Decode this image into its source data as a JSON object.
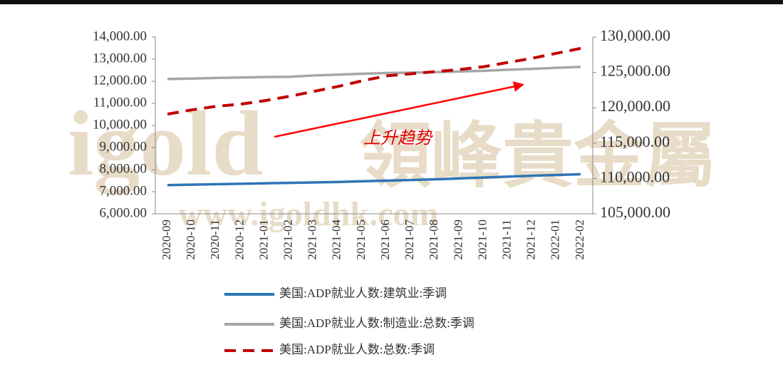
{
  "chart_data": {
    "type": "line",
    "categories": [
      "2020-09",
      "2020-10",
      "2020-11",
      "2020-12",
      "2021-01",
      "2021-02",
      "2021-03",
      "2021-04",
      "2021-05",
      "2021-06",
      "2021-07",
      "2021-08",
      "2021-09",
      "2021-10",
      "2021-11",
      "2021-12",
      "2022-01",
      "2022-02"
    ],
    "series": [
      {
        "name": "美国:ADP就业人数:建筑业:季调",
        "color": "#2e75b6",
        "values": [
          7300,
          7320,
          7340,
          7360,
          7380,
          7400,
          7420,
          7440,
          7470,
          7500,
          7530,
          7560,
          7600,
          7640,
          7680,
          7720,
          7760,
          7790
        ]
      },
      {
        "name": "美国:ADP就业人数:制造业:总数:季调",
        "color": "#a6a6a6",
        "values": [
          12100,
          12120,
          12150,
          12170,
          12190,
          12200,
          12260,
          12300,
          12340,
          12370,
          12390,
          12410,
          12440,
          12470,
          12520,
          12560,
          12610,
          12650
        ]
      },
      {
        "name": "美国:ADP就业人数:总数:季调",
        "color": "#c00000",
        "dash": true,
        "axis": "y2",
        "values": [
          119100,
          119700,
          120200,
          120500,
          121000,
          121600,
          122300,
          123000,
          123800,
          124500,
          124800,
          125100,
          125400,
          125800,
          126400,
          127000,
          127700,
          128400
        ]
      }
    ],
    "ylim": [
      6000,
      14000
    ],
    "yticks": [
      {
        "value": 6000,
        "label": "6,000.00"
      },
      {
        "value": 7000,
        "label": "7,000.00"
      },
      {
        "value": 8000,
        "label": "8,000.00"
      },
      {
        "value": 9000,
        "label": "9,000.00"
      },
      {
        "value": 10000,
        "label": "10,000.00"
      },
      {
        "value": 11000,
        "label": "11,000.00"
      },
      {
        "value": 12000,
        "label": "12,000.00"
      },
      {
        "value": 13000,
        "label": "13,000.00"
      },
      {
        "value": 14000,
        "label": "14,000.00"
      }
    ],
    "y2lim": [
      105000,
      130000
    ],
    "y2ticks": [
      {
        "value": 105000,
        "label": "105,000.00"
      },
      {
        "value": 110000,
        "label": "110,000.00"
      },
      {
        "value": 115000,
        "label": "115,000.00"
      },
      {
        "value": 120000,
        "label": "120,000.00"
      },
      {
        "value": 125000,
        "label": "125,000.00"
      },
      {
        "value": 130000,
        "label": "130,000.00"
      }
    ],
    "annotations": [
      {
        "text": "上升趋势"
      }
    ],
    "legend": "bottom"
  },
  "watermark": [
    "igold",
    "領峰貴金屬",
    "www.igoldhk.com"
  ]
}
